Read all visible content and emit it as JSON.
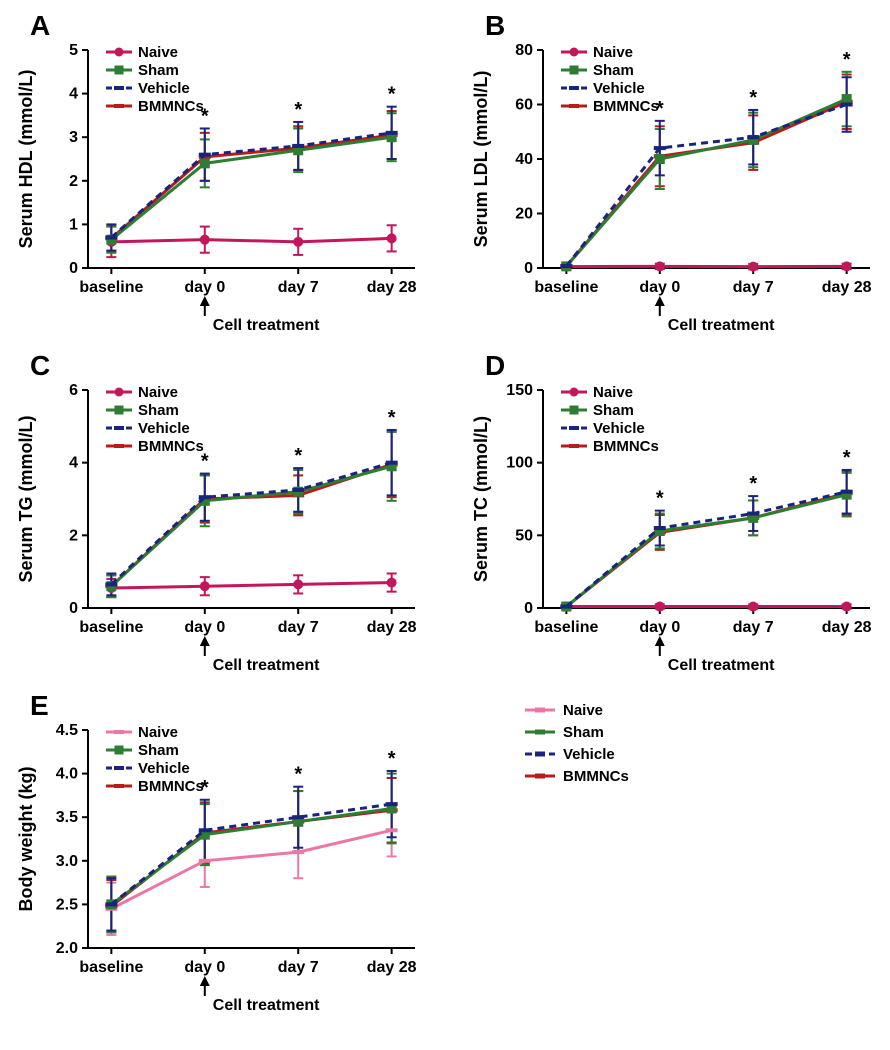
{
  "palette": {
    "naive": "#c2185b",
    "sham": "#2e7d32",
    "vehicle": "#1a237e",
    "bmmncs": "#b71c1c",
    "naive_lt": "#ec77a7"
  },
  "series_labels": [
    "Naive",
    "Sham",
    "Vehicle",
    "BMMNCs"
  ],
  "x_categories": [
    "baseline",
    "day 0",
    "day 7",
    "day 28"
  ],
  "cell_treatment_label": "Cell treatment",
  "panels": {
    "A": {
      "label": "A",
      "ylabel": "Serum HDL (mmol/L)",
      "ymin": 0,
      "ymax": 5,
      "ytick_step": 1,
      "series": {
        "naive": [
          0.6,
          0.65,
          0.6,
          0.68
        ],
        "sham": [
          0.65,
          2.4,
          2.7,
          3.0
        ],
        "vehicle": [
          0.7,
          2.6,
          2.8,
          3.1
        ],
        "bmmncs": [
          0.68,
          2.55,
          2.75,
          3.05
        ]
      },
      "err": {
        "naive": [
          0.35,
          0.3,
          0.3,
          0.3
        ],
        "sham": [
          0.3,
          0.55,
          0.5,
          0.55
        ],
        "vehicle": [
          0.3,
          0.6,
          0.55,
          0.6
        ],
        "bmmncs": [
          0.3,
          0.55,
          0.5,
          0.55
        ]
      },
      "stars_at": [
        1,
        2,
        3
      ]
    },
    "B": {
      "label": "B",
      "ylabel": "Serum LDL (mmol/L)",
      "ymin": 0,
      "ymax": 80,
      "ytick_step": 20,
      "series": {
        "naive": [
          0.5,
          0.6,
          0.5,
          0.6
        ],
        "sham": [
          0.6,
          40,
          47,
          62
        ],
        "vehicle": [
          0.7,
          44,
          48,
          60
        ],
        "bmmncs": [
          0.65,
          41,
          46,
          61
        ]
      },
      "err": {
        "naive": [
          1,
          1,
          1,
          1
        ],
        "sham": [
          1,
          11,
          10,
          10
        ],
        "vehicle": [
          1,
          10,
          10,
          10
        ],
        "bmmncs": [
          1,
          11,
          10,
          10
        ]
      },
      "stars_at": [
        1,
        2,
        3
      ]
    },
    "C": {
      "label": "C",
      "ylabel": "Serum TG (mmol/L)",
      "ymin": 0,
      "ymax": 6,
      "ytick_step": 2,
      "series": {
        "naive": [
          0.55,
          0.6,
          0.65,
          0.7
        ],
        "sham": [
          0.6,
          2.95,
          3.2,
          3.9
        ],
        "vehicle": [
          0.65,
          3.05,
          3.25,
          4.0
        ],
        "bmmncs": [
          0.6,
          3.0,
          3.1,
          3.95
        ]
      },
      "err": {
        "naive": [
          0.25,
          0.25,
          0.25,
          0.25
        ],
        "sham": [
          0.3,
          0.7,
          0.6,
          0.95
        ],
        "vehicle": [
          0.3,
          0.65,
          0.6,
          0.9
        ],
        "bmmncs": [
          0.3,
          0.65,
          0.55,
          0.9
        ]
      },
      "stars_at": [
        1,
        2,
        3
      ]
    },
    "D": {
      "label": "D",
      "ylabel": "Serum TC (mmol/L)",
      "ymin": 0,
      "ymax": 150,
      "ytick_step": 50,
      "series": {
        "naive": [
          1,
          1,
          1,
          1
        ],
        "sham": [
          1,
          53,
          62,
          78
        ],
        "vehicle": [
          1,
          55,
          65,
          80
        ],
        "bmmncs": [
          1,
          52,
          62,
          79
        ]
      },
      "err": {
        "naive": [
          1.5,
          1.5,
          1.5,
          1.5
        ],
        "sham": [
          2,
          12,
          12,
          15
        ],
        "vehicle": [
          2,
          12,
          12,
          15
        ],
        "bmmncs": [
          2,
          12,
          12,
          15
        ]
      },
      "stars_at": [
        1,
        2,
        3
      ]
    },
    "E": {
      "label": "E",
      "ylabel": "Body weight (kg)",
      "ymin": 2.0,
      "ymax": 4.5,
      "ytick_step": 0.5,
      "use_light_naive": true,
      "series": {
        "naive": [
          2.45,
          3.0,
          3.1,
          3.35
        ],
        "sham": [
          2.5,
          3.3,
          3.45,
          3.6
        ],
        "vehicle": [
          2.5,
          3.35,
          3.5,
          3.65
        ],
        "bmmncs": [
          2.48,
          3.32,
          3.45,
          3.58
        ]
      },
      "err": {
        "naive": [
          0.3,
          0.3,
          0.3,
          0.3
        ],
        "sham": [
          0.32,
          0.35,
          0.35,
          0.4
        ],
        "vehicle": [
          0.3,
          0.35,
          0.35,
          0.38
        ],
        "bmmncs": [
          0.3,
          0.35,
          0.35,
          0.37
        ]
      },
      "stars_at": [
        1,
        2,
        3
      ]
    }
  }
}
